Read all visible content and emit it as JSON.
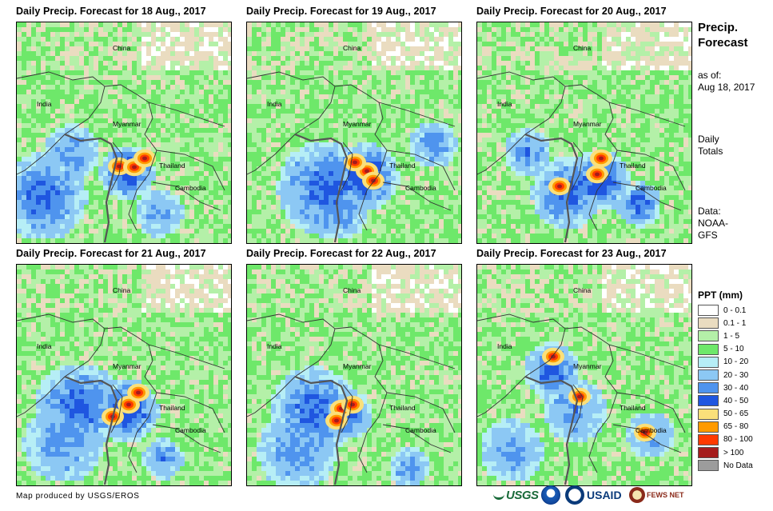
{
  "panels": [
    {
      "title": "Daily Precip. Forecast for 18 Aug., 2017",
      "labels": {
        "china": "China",
        "india": "India",
        "myanmar": "Myanmar",
        "thailand": "Thailand",
        "cambodia": "Cambodia"
      }
    },
    {
      "title": "Daily Precip. Forecast for 19 Aug., 2017",
      "labels": {
        "china": "China",
        "india": "India",
        "myanmar": "Myanmar",
        "thailand": "Thailand",
        "cambodia": "Cambodia"
      }
    },
    {
      "title": "Daily Precip. Forecast for 20 Aug., 2017",
      "labels": {
        "china": "China",
        "india": "India",
        "myanmar": "Myanmar",
        "thailand": "Thailand",
        "cambodia": "Cambodia"
      }
    },
    {
      "title": "Daily Precip. Forecast for 21 Aug., 2017",
      "labels": {
        "china": "China",
        "india": "India",
        "myanmar": "Myanmar",
        "thailand": "Thailand",
        "cambodia": "Cambodia"
      }
    },
    {
      "title": "Daily Precip. Forecast for 22 Aug., 2017",
      "labels": {
        "china": "China",
        "india": "India",
        "myanmar": "Myanmar",
        "thailand": "Thailand",
        "cambodia": "Cambodia"
      }
    },
    {
      "title": "Daily Precip. Forecast for 23 Aug., 2017",
      "labels": {
        "china": "China",
        "india": "India",
        "myanmar": "Myanmar",
        "thailand": "Thailand",
        "cambodia": "Cambodia"
      }
    }
  ],
  "side": {
    "title_line1": "Precip.",
    "title_line2": "Forecast",
    "asof_line1": "as of:",
    "asof_line2": "Aug 18, 2017",
    "daily_line1": "Daily",
    "daily_line2": "Totals",
    "data_line1": "Data:",
    "data_line2": "NOAA-",
    "data_line3": "GFS"
  },
  "legend": {
    "title": "PPT (mm)",
    "items": [
      {
        "label": "0 - 0.1",
        "color": "#ffffff"
      },
      {
        "label": "0.1 - 1",
        "color": "#eadcc0"
      },
      {
        "label": "1 - 5",
        "color": "#b4f0a8"
      },
      {
        "label": "5 - 10",
        "color": "#6ee86a"
      },
      {
        "label": "10 - 20",
        "color": "#b6eef6"
      },
      {
        "label": "20 - 30",
        "color": "#8cc8f4"
      },
      {
        "label": "30 - 40",
        "color": "#4f94ee"
      },
      {
        "label": "40 - 50",
        "color": "#1f56e0"
      },
      {
        "label": "50 - 65",
        "color": "#fae07a"
      },
      {
        "label": "65 - 80",
        "color": "#ff9a00"
      },
      {
        "label": "80 - 100",
        "color": "#ff3a00"
      },
      {
        "label": "> 100",
        "color": "#a51c1c"
      },
      {
        "label": "No Data",
        "color": "#9c9c9c"
      }
    ]
  },
  "footer": {
    "credit": "Map produced by USGS/EROS",
    "logo_usgs": "USGS",
    "logo_usaid": "USAID",
    "logo_fews": "FEWS NET"
  }
}
